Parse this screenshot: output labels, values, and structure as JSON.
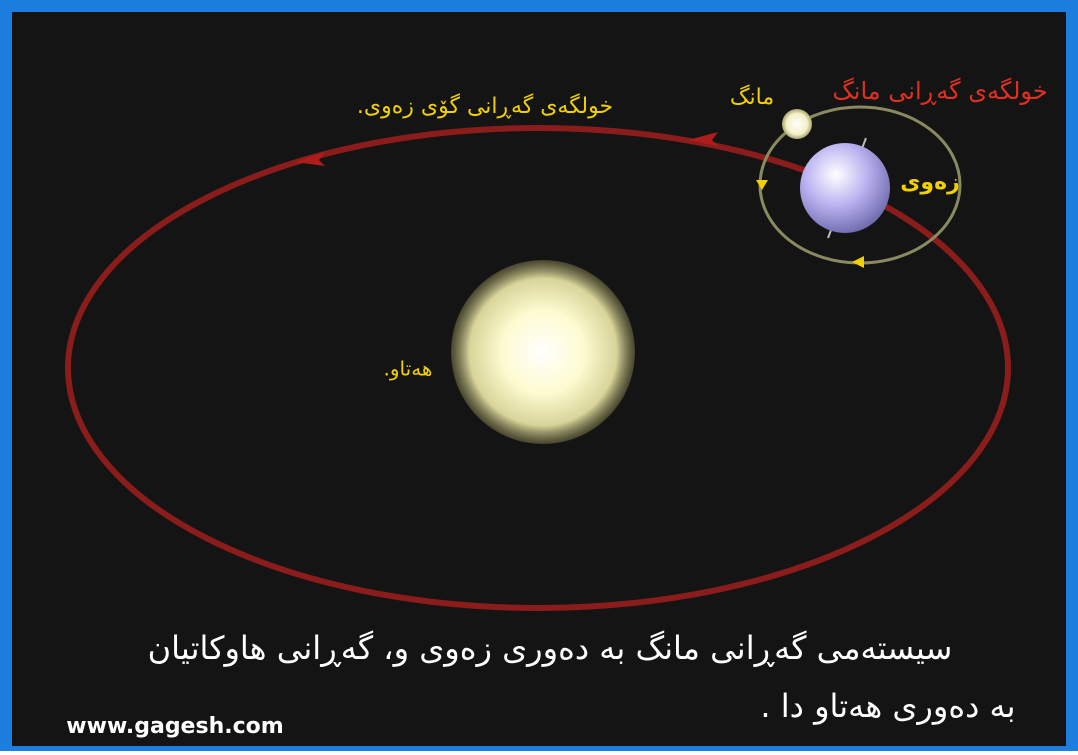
{
  "labels": {
    "moon_orbit": "خولگەی گەڕانی مانگ",
    "moon": "مانگ",
    "earth_orbit": "خولگەی گەڕانی گۆی زەوی.",
    "earth": "زەوی",
    "sun": "هەتاو."
  },
  "caption": {
    "line1": "سیستەمی گەڕانی مانگ بە دەوری زەوی و، گەڕانی هاوکاتیان",
    "line2": "بە دەوری هەتاو دا ."
  },
  "website": "www.gagesh.com"
}
